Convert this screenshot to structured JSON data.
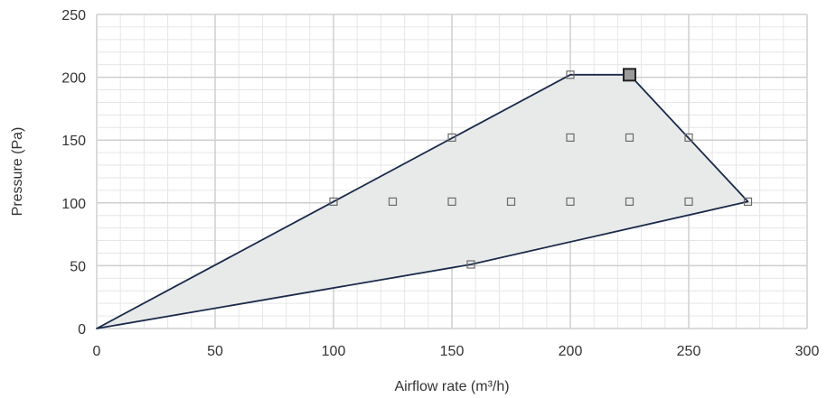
{
  "chart_data": {
    "type": "area",
    "xlabel": "Airflow rate (m³/h)",
    "ylabel": "Pressure (Pa)",
    "xlim": [
      0,
      300
    ],
    "ylim": [
      0,
      250
    ],
    "x_ticks": [
      0,
      50,
      100,
      150,
      200,
      250,
      300
    ],
    "y_ticks": [
      0,
      50,
      100,
      150,
      200,
      250
    ],
    "x_minor_step": 10,
    "y_minor_step": 10,
    "grid": true,
    "colors": {
      "fill": "#e8eaea",
      "outline": "#1b2a4a",
      "marker_stroke": "#6b6b6b",
      "highlight_fill": "#9a9a9a",
      "major_grid": "#cfcfcf",
      "minor_grid": "#e6e6e6"
    },
    "envelope": [
      {
        "x": 0,
        "y": 0
      },
      {
        "x": 100,
        "y": 101
      },
      {
        "x": 200,
        "y": 202
      },
      {
        "x": 225,
        "y": 202
      },
      {
        "x": 275,
        "y": 101
      },
      {
        "x": 158,
        "y": 51
      },
      {
        "x": 0,
        "y": 0
      }
    ],
    "points": [
      {
        "x": 100,
        "y": 101
      },
      {
        "x": 125,
        "y": 101
      },
      {
        "x": 150,
        "y": 101
      },
      {
        "x": 175,
        "y": 101
      },
      {
        "x": 200,
        "y": 101
      },
      {
        "x": 225,
        "y": 101
      },
      {
        "x": 250,
        "y": 101
      },
      {
        "x": 275,
        "y": 101
      },
      {
        "x": 150,
        "y": 152
      },
      {
        "x": 200,
        "y": 152
      },
      {
        "x": 225,
        "y": 152
      },
      {
        "x": 250,
        "y": 152
      },
      {
        "x": 200,
        "y": 202
      },
      {
        "x": 158,
        "y": 51
      }
    ],
    "highlight_point": {
      "x": 225,
      "y": 202
    }
  }
}
